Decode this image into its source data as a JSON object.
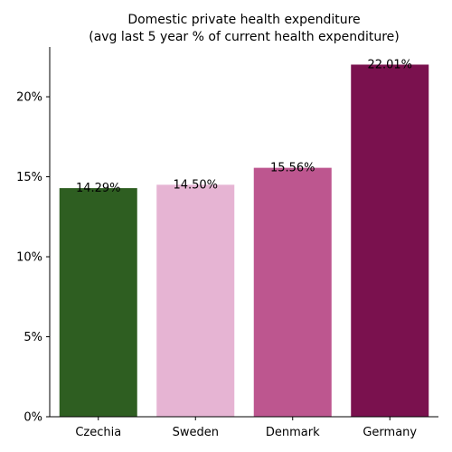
{
  "chart_data": {
    "type": "bar",
    "title": "Domestic private health expenditure",
    "subtitle": "(avg last 5 year % of current health expenditure)",
    "xlabel": "",
    "ylabel": "",
    "categories": [
      "Czechia",
      "Sweden",
      "Denmark",
      "Germany"
    ],
    "values": [
      14.29,
      14.5,
      15.56,
      22.01
    ],
    "value_labels": [
      "14.29%",
      "14.50%",
      "15.56%",
      "22.01%"
    ],
    "colors": [
      "#2e5e21",
      "#e6b4d3",
      "#bd568f",
      "#7a114e"
    ],
    "ylim": [
      0,
      23.11
    ],
    "yticks": [
      0,
      5,
      10,
      15,
      20
    ],
    "ytick_labels": [
      "0%",
      "5%",
      "10%",
      "15%",
      "20%"
    ],
    "grid": false,
    "legend": "none"
  }
}
